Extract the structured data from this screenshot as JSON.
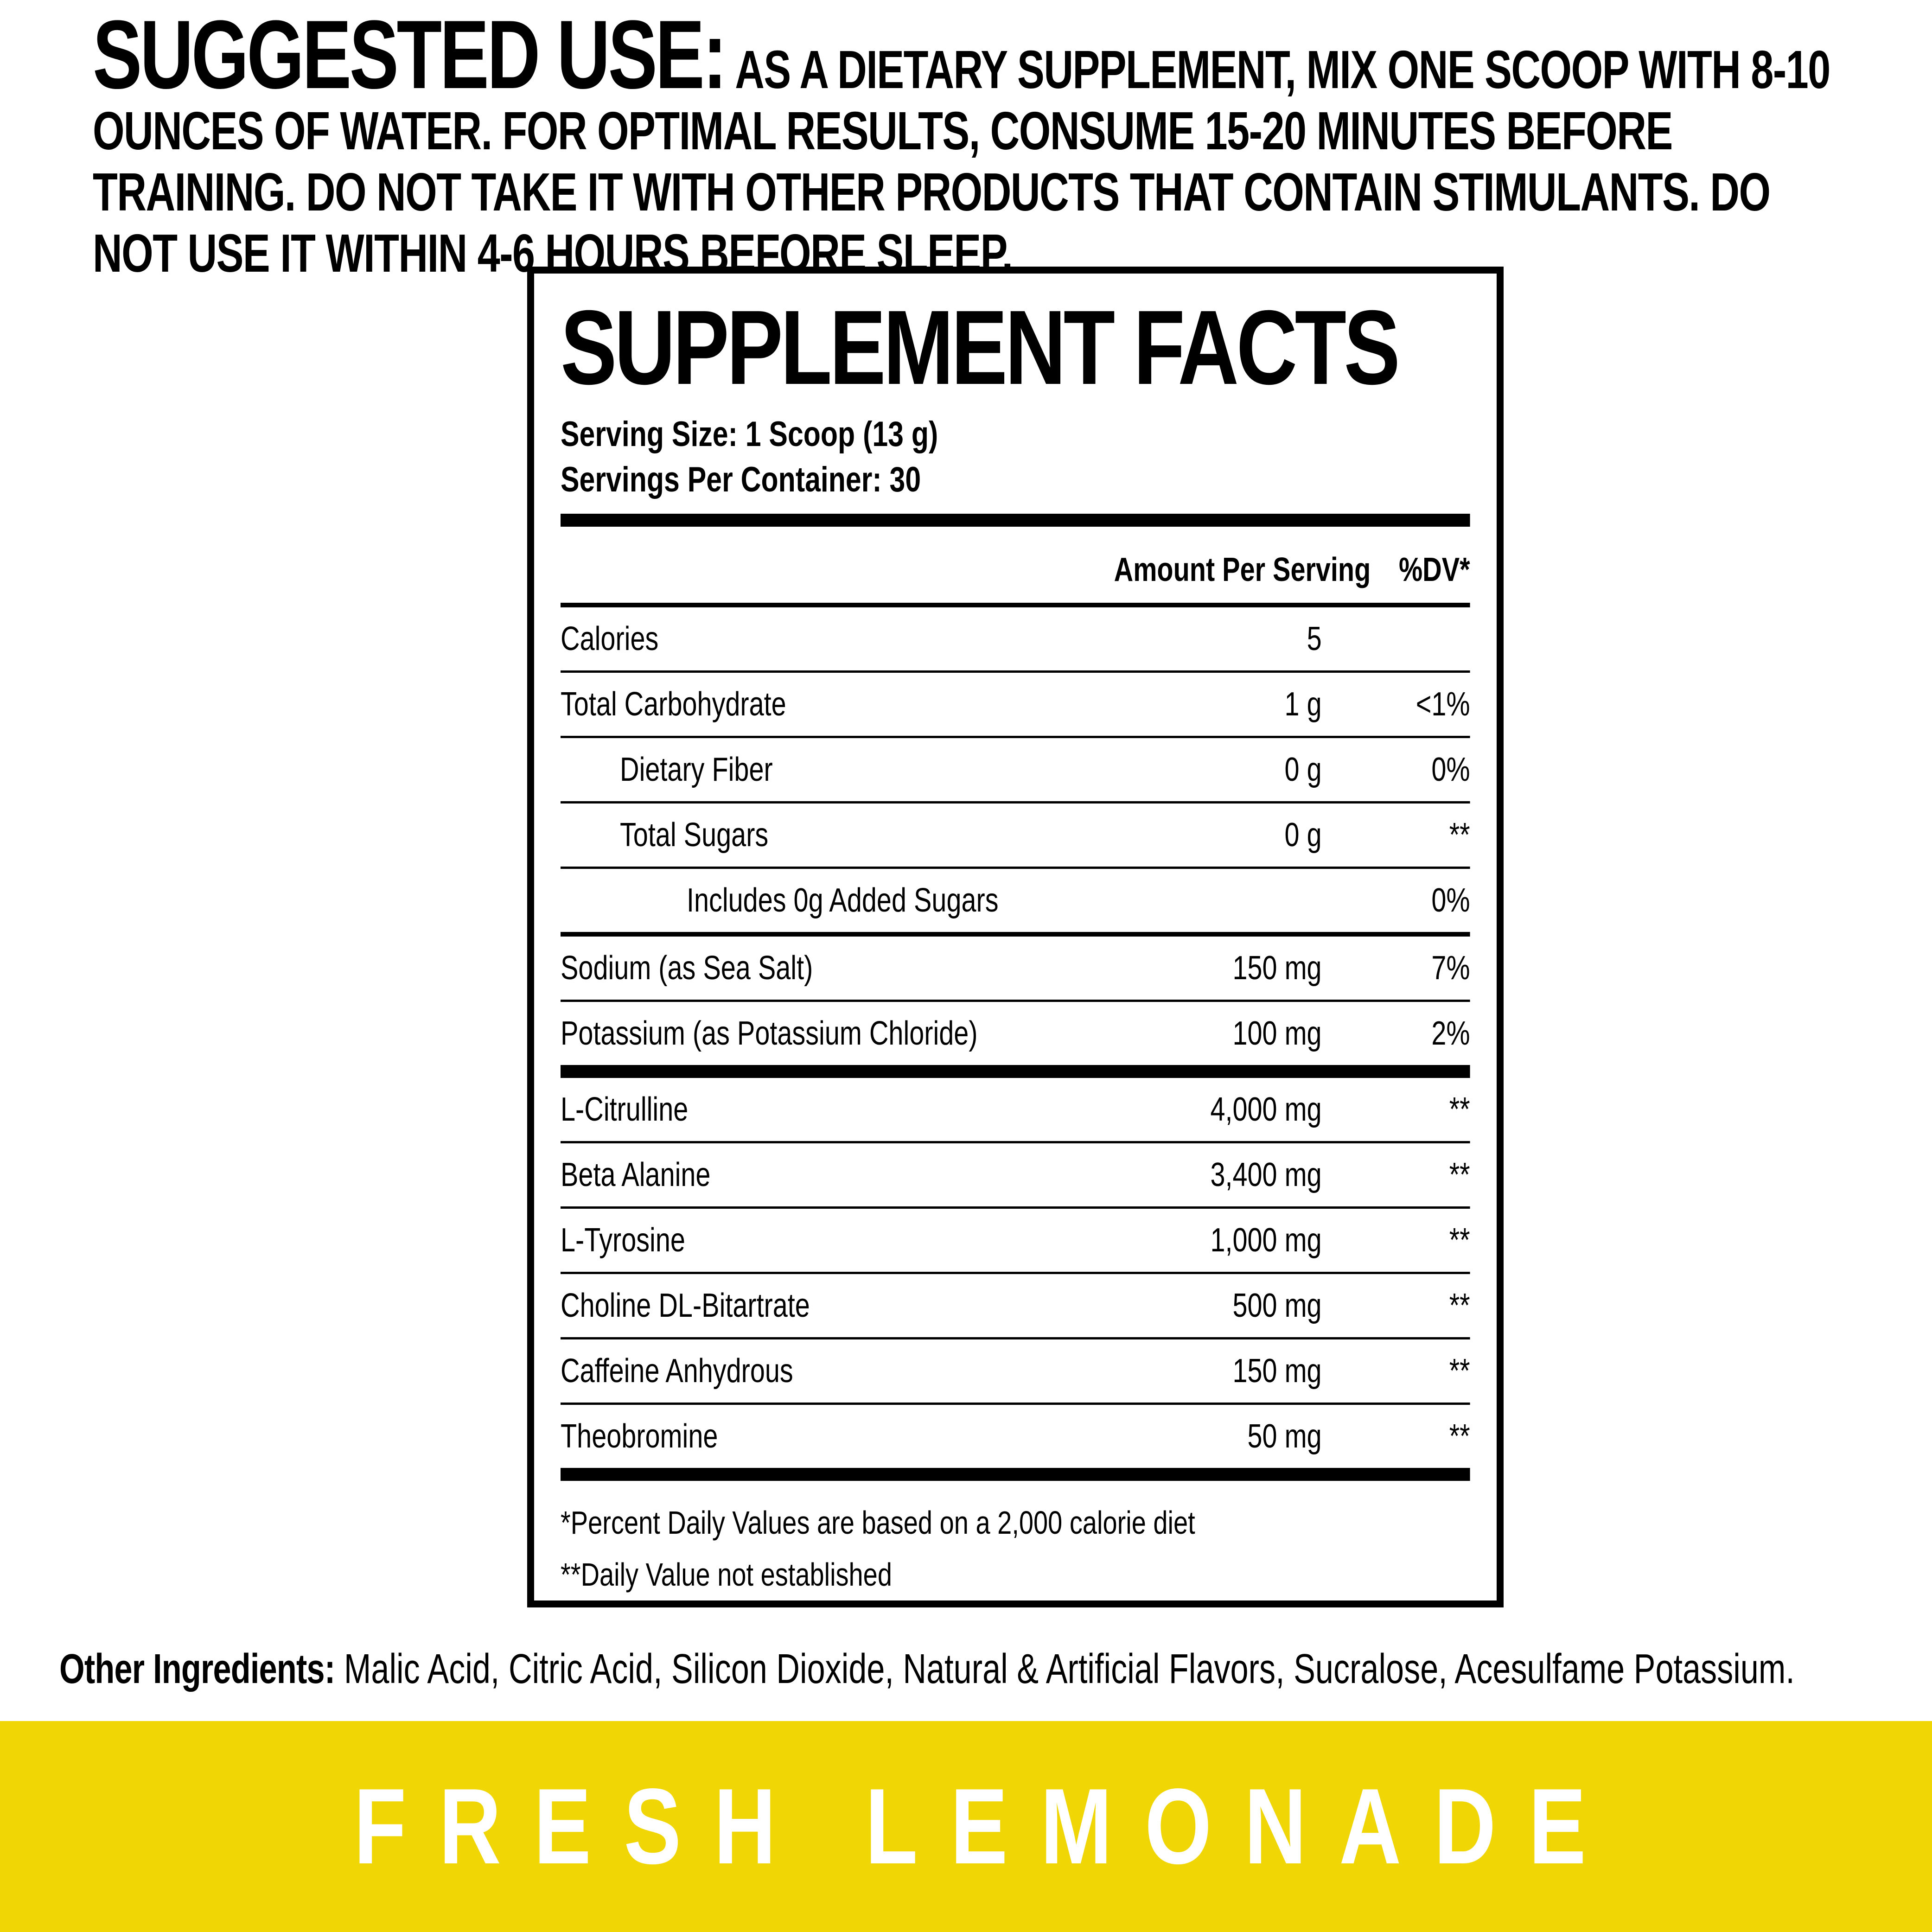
{
  "suggested_use": {
    "heading": "SUGGESTED USE:",
    "body": "AS A DIETARY SUPPLEMENT, MIX ONE SCOOP WITH 8-10 OUNCES OF WATER. FOR OPTIMAL RESULTS, CONSUME 15-20 MINUTES BEFORE TRAINING. DO NOT TAKE IT WITH OTHER PRODUCTS THAT CONTAIN STIMULANTS. DO NOT USE IT WITHIN 4-6 HOURS BEFORE SLEEP."
  },
  "panel": {
    "title": "SUPPLEMENT FACTS",
    "serving_size": "Serving Size: 1 Scoop (13 g)",
    "servings_per_container": "Servings Per Container: 30",
    "columns": {
      "amount": "Amount Per Serving",
      "dv": "%DV*"
    },
    "rows": [
      {
        "name": "Calories",
        "amount": "5",
        "dv": ""
      },
      {
        "name": "Total Carbohydrate",
        "amount": "1 g",
        "dv": "<1%"
      },
      {
        "name": "Dietary Fiber",
        "amount": "0 g",
        "dv": "0%"
      },
      {
        "name": "Total Sugars",
        "amount": "0 g",
        "dv": "**"
      },
      {
        "name": "Includes 0g Added Sugars",
        "amount": "",
        "dv": "0%"
      },
      {
        "name": "Sodium (as Sea Salt)",
        "amount": "150 mg",
        "dv": "7%"
      },
      {
        "name": "Potassium (as Potassium Chloride)",
        "amount": "100 mg",
        "dv": "2%"
      },
      {
        "name": "L-Citrulline",
        "amount": "4,000 mg",
        "dv": "**"
      },
      {
        "name": "Beta Alanine",
        "amount": "3,400 mg",
        "dv": "**"
      },
      {
        "name": "L-Tyrosine",
        "amount": "1,000 mg",
        "dv": "**"
      },
      {
        "name": "Choline DL-Bitartrate",
        "amount": "500 mg",
        "dv": "**"
      },
      {
        "name": "Caffeine Anhydrous",
        "amount": "150 mg",
        "dv": "**"
      },
      {
        "name": "Theobromine",
        "amount": "50 mg",
        "dv": "**"
      }
    ],
    "footnotes": [
      "*Percent Daily Values are based on a 2,000 calorie diet",
      "**Daily Value not established"
    ]
  },
  "other_ingredients": {
    "label": "Other Ingredients:",
    "items": "Malic Acid, Citric Acid, Silicon Dioxide, Natural & Artificial Flavors, Sucralose, Acesulfame Potassium."
  },
  "flavor_banner": {
    "text": "FRESH LEMONADE",
    "background_color": "#F1D606",
    "text_color": "#FFFFFF"
  }
}
